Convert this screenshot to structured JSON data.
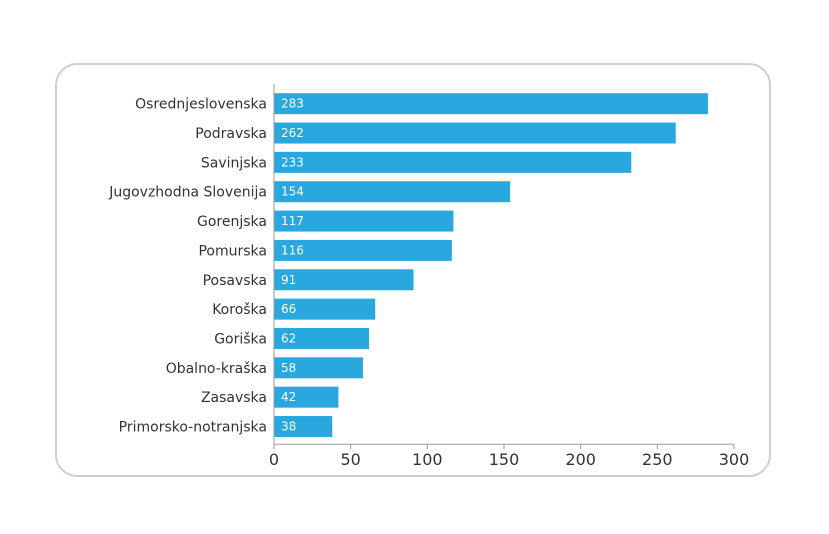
{
  "chart_data": {
    "type": "bar",
    "orientation": "horizontal",
    "categories": [
      "Osrednjeslovenska",
      "Podravska",
      "Savinjska",
      "Jugovzhodna Slovenija",
      "Gorenjska",
      "Pomurska",
      "Posavska",
      "Koroška",
      "Goriška",
      "Obalno-kraška",
      "Zasavska",
      "Primorsko-notranjska"
    ],
    "values": [
      283,
      262,
      233,
      154,
      117,
      116,
      91,
      66,
      62,
      58,
      42,
      38
    ],
    "value_labels": [
      "283",
      "262",
      "233",
      "154",
      "117",
      "116",
      "91",
      "66",
      "62",
      "58",
      "42",
      "38"
    ],
    "xticks": [
      0,
      50,
      100,
      150,
      200,
      250,
      300
    ],
    "xtick_labels": [
      "0",
      "50",
      "100",
      "150",
      "200",
      "250",
      "300"
    ],
    "xlim": [
      0,
      300
    ],
    "title": "",
    "xlabel": "",
    "ylabel": "",
    "grid": false,
    "bar_color": "#29a8e0",
    "axis_color": "#9a9a9a"
  }
}
